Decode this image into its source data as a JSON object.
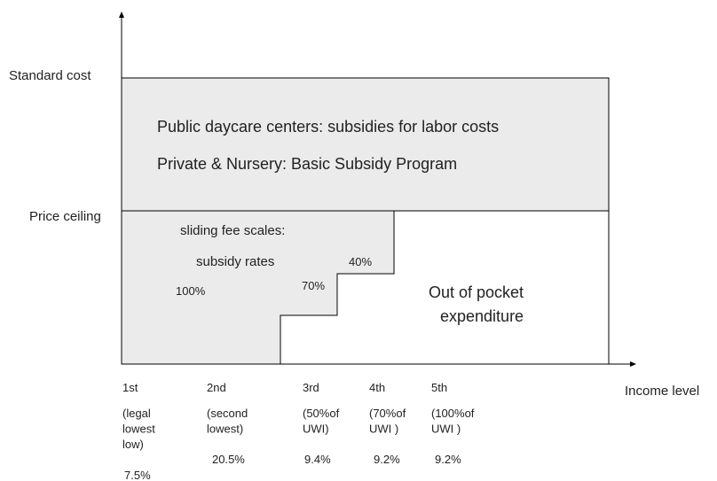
{
  "axes": {
    "y_labels": [
      "Standard cost",
      "Price ceiling"
    ],
    "x_label": "Income level"
  },
  "upper_box": {
    "lines": [
      "Public daycare centers: subsidies for labor costs",
      "Private & Nursery: Basic Subsidy Program"
    ]
  },
  "sliding_fee": {
    "lines": [
      "sliding fee scales:",
      "subsidy rates"
    ],
    "rates": [
      "100%",
      "70%",
      "40%"
    ]
  },
  "out_of_pocket": {
    "lines": [
      "Out of pocket",
      "expenditure"
    ]
  },
  "income_groups": [
    {
      "rank": "1st",
      "description": [
        "(legal",
        "lowest",
        "low)"
      ],
      "share": "7.5%"
    },
    {
      "rank": "2nd",
      "description": [
        "(second",
        "lowest)"
      ],
      "share": "20.5%"
    },
    {
      "rank": "3rd",
      "description": [
        "(50%of",
        "UWI)"
      ],
      "share": "9.4%"
    },
    {
      "rank": "4th",
      "description": [
        "(70%of",
        "UWI )"
      ],
      "share": "9.2%"
    },
    {
      "rank": "5th",
      "description": [
        "(100%of",
        "UWI )"
      ],
      "share": "9.2%"
    }
  ]
}
